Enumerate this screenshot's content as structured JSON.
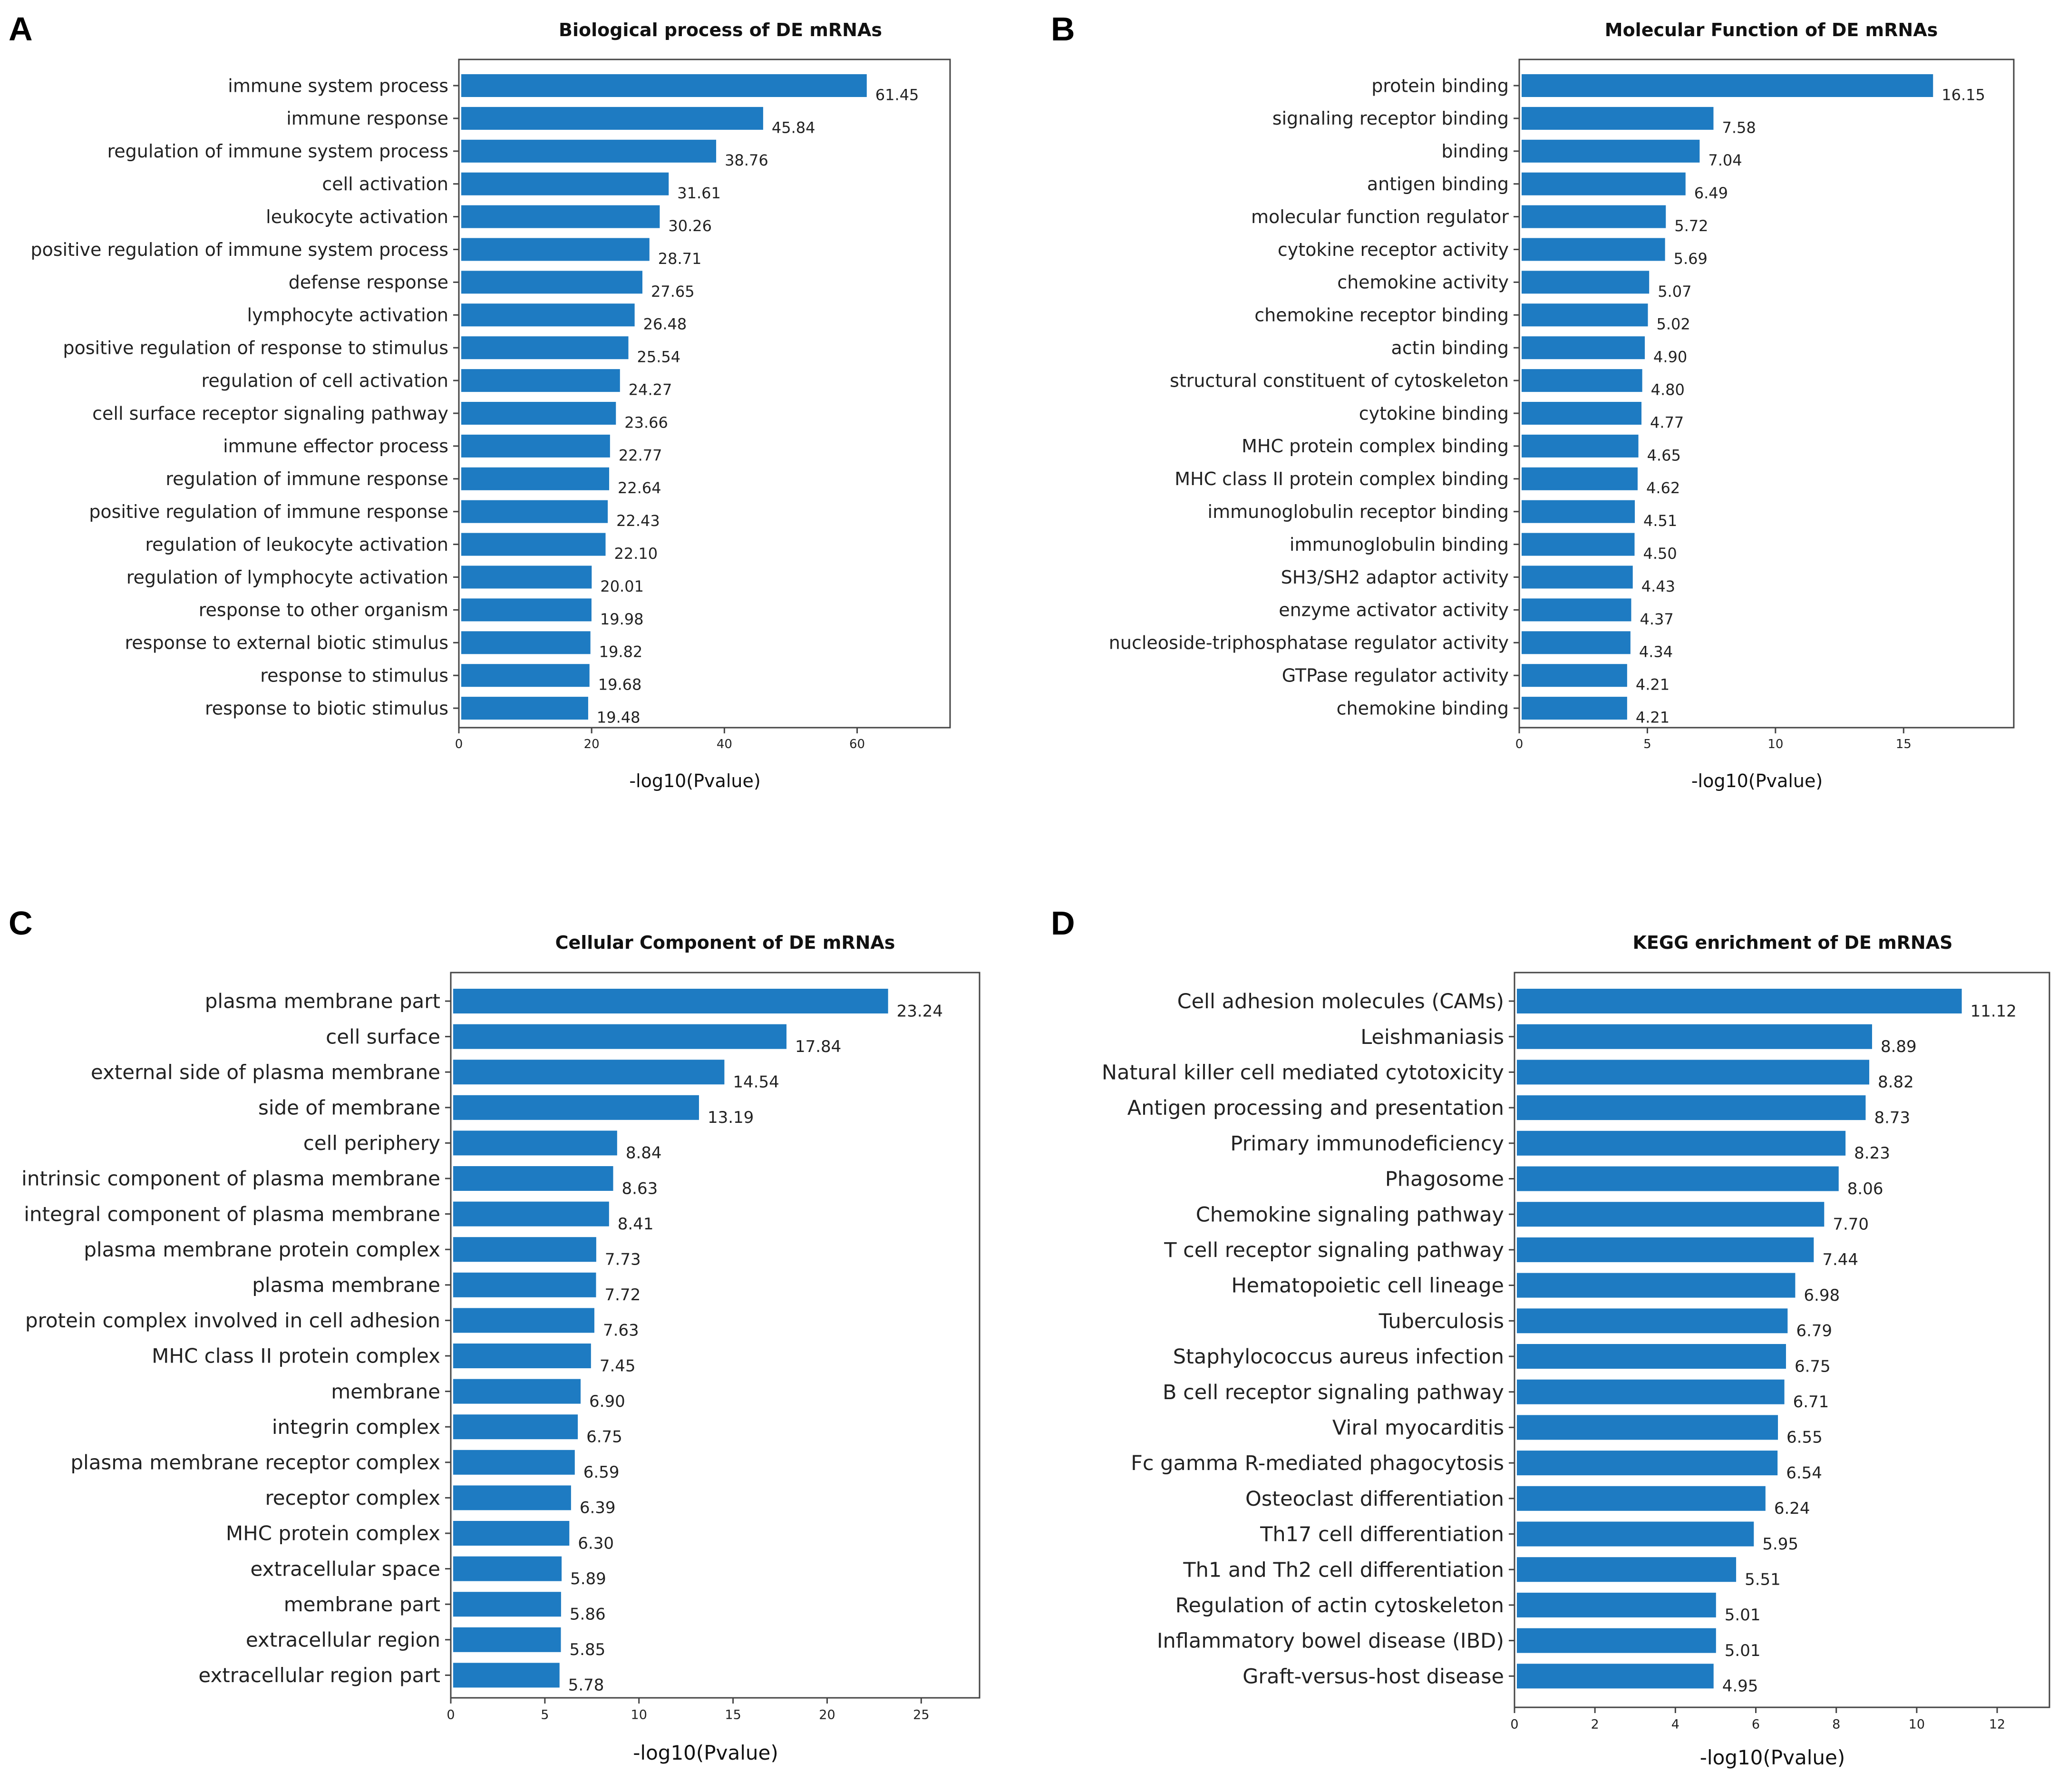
{
  "figure": {
    "panels": [
      "A",
      "B",
      "C",
      "D"
    ]
  },
  "chart_data": [
    {
      "panel": "A",
      "type": "bar",
      "orientation": "horizontal",
      "title": "Biological process of DE mRNAs",
      "xlabel": "-log10(Pvalue)",
      "ylabel": "",
      "xlim": [
        0,
        74
      ],
      "xticks": [
        0,
        20,
        40,
        60
      ],
      "bar_color": "#1E7BC2",
      "categories": [
        "immune system process",
        "immune response",
        "regulation of immune system process",
        "cell activation",
        "leukocyte activation",
        "positive regulation of immune system process",
        "defense response",
        "lymphocyte activation",
        "positive regulation of response to stimulus",
        "regulation of cell activation",
        "cell surface receptor signaling pathway",
        "immune effector process",
        "regulation of immune response",
        "positive regulation of immune response",
        "regulation of leukocyte activation",
        "regulation of lymphocyte activation",
        "response to other organism",
        "response to external biotic stimulus",
        "response to stimulus",
        "response to biotic stimulus"
      ],
      "values": [
        61.45,
        45.84,
        38.76,
        31.61,
        30.26,
        28.71,
        27.65,
        26.48,
        25.54,
        24.27,
        23.66,
        22.77,
        22.64,
        22.43,
        22.1,
        20.01,
        19.98,
        19.82,
        19.68,
        19.48
      ],
      "value_labels": [
        "61.45",
        "45.84",
        "38.76",
        "31.61",
        "30.26",
        "28.71",
        "27.65",
        "26.48",
        "25.54",
        "24.27",
        "23.66",
        "22.77",
        "22.64",
        "22.43",
        "22.10",
        "20.01",
        "19.98",
        "19.82",
        "19.68",
        "19.48"
      ]
    },
    {
      "panel": "B",
      "type": "bar",
      "orientation": "horizontal",
      "title": "Molecular Function of DE mRNAs",
      "xlabel": "-log10(Pvalue)",
      "ylabel": "",
      "xlim": [
        0,
        19.3
      ],
      "xticks": [
        0,
        5,
        10,
        15
      ],
      "bar_color": "#1E7BC2",
      "categories": [
        "protein binding",
        "signaling receptor binding",
        "binding",
        "antigen binding",
        "molecular function regulator",
        "cytokine receptor activity",
        "chemokine activity",
        "chemokine receptor binding",
        "actin binding",
        "structural constituent of cytoskeleton",
        "cytokine binding",
        "MHC protein complex binding",
        "MHC class II protein complex binding",
        "immunoglobulin receptor binding",
        "immunoglobulin binding",
        "SH3/SH2 adaptor activity",
        "enzyme activator activity",
        "nucleoside-triphosphatase regulator activity",
        "GTPase regulator activity",
        "chemokine binding"
      ],
      "values": [
        16.15,
        7.58,
        7.04,
        6.49,
        5.72,
        5.69,
        5.07,
        5.02,
        4.9,
        4.8,
        4.77,
        4.65,
        4.62,
        4.51,
        4.5,
        4.43,
        4.37,
        4.34,
        4.21,
        4.21
      ],
      "value_labels": [
        "16.15",
        "7.58",
        "7.04",
        "6.49",
        "5.72",
        "5.69",
        "5.07",
        "5.02",
        "4.90",
        "4.80",
        "4.77",
        "4.65",
        "4.62",
        "4.51",
        "4.50",
        "4.43",
        "4.37",
        "4.34",
        "4.21",
        "4.21"
      ]
    },
    {
      "panel": "C",
      "type": "bar",
      "orientation": "horizontal",
      "title": "Cellular Component of DE mRNAs",
      "xlabel": "-log10(Pvalue)",
      "ylabel": "",
      "xlim": [
        0,
        28.1
      ],
      "xticks": [
        0,
        5,
        10,
        15,
        20,
        25
      ],
      "bar_color": "#1E7BC2",
      "categories": [
        "plasma membrane part",
        "cell surface",
        "external side of plasma membrane",
        "side of membrane",
        "cell periphery",
        "intrinsic component of plasma membrane",
        "integral component of plasma membrane",
        "plasma membrane protein complex",
        "plasma membrane",
        "protein complex involved in cell adhesion",
        "MHC class II protein complex",
        "membrane",
        "integrin complex",
        "plasma membrane receptor complex",
        "receptor complex",
        "MHC protein complex",
        "extracellular space",
        "membrane part",
        "extracellular region",
        "extracellular region part"
      ],
      "values": [
        23.24,
        17.84,
        14.54,
        13.19,
        8.84,
        8.63,
        8.41,
        7.73,
        7.72,
        7.63,
        7.45,
        6.9,
        6.75,
        6.59,
        6.39,
        6.3,
        5.89,
        5.86,
        5.85,
        5.78
      ],
      "value_labels": [
        "23.24",
        "17.84",
        "14.54",
        "13.19",
        "8.84",
        "8.63",
        "8.41",
        "7.73",
        "7.72",
        "7.63",
        "7.45",
        "6.90",
        "6.75",
        "6.59",
        "6.39",
        "6.30",
        "5.89",
        "5.86",
        "5.85",
        "5.78"
      ]
    },
    {
      "panel": "D",
      "type": "bar",
      "orientation": "horizontal",
      "title": "KEGG enrichment of DE mRNAS",
      "xlabel": "-log10(Pvalue)",
      "ylabel": "",
      "xlim": [
        0,
        13.3
      ],
      "xticks": [
        0,
        2,
        4,
        6,
        8,
        10,
        12
      ],
      "bar_color": "#1E7BC2",
      "categories": [
        "Cell adhesion molecules (CAMs)",
        "Leishmaniasis",
        "Natural killer cell mediated cytotoxicity",
        "Antigen processing and presentation",
        "Primary immunodeficiency",
        "Phagosome",
        "Chemokine signaling pathway",
        "T cell receptor signaling pathway",
        "Hematopoietic cell lineage",
        "Tuberculosis",
        "Staphylococcus aureus infection",
        "B cell receptor signaling pathway",
        "Viral myocarditis",
        "Fc gamma R-mediated phagocytosis",
        "Osteoclast differentiation",
        "Th17 cell differentiation",
        "Th1 and Th2 cell differentiation",
        "Regulation of actin cytoskeleton",
        "Inflammatory bowel disease (IBD)",
        "Graft-versus-host disease"
      ],
      "values": [
        11.12,
        8.89,
        8.82,
        8.73,
        8.23,
        8.06,
        7.7,
        7.44,
        6.98,
        6.79,
        6.75,
        6.71,
        6.55,
        6.54,
        6.24,
        5.95,
        5.51,
        5.01,
        5.01,
        4.95
      ],
      "value_labels": [
        "11.12",
        "8.89",
        "8.82",
        "8.73",
        "8.23",
        "8.06",
        "7.70",
        "7.44",
        "6.98",
        "6.79",
        "6.75",
        "6.71",
        "6.55",
        "6.54",
        "6.24",
        "5.95",
        "5.51",
        "5.01",
        "5.01",
        "4.95"
      ]
    }
  ]
}
